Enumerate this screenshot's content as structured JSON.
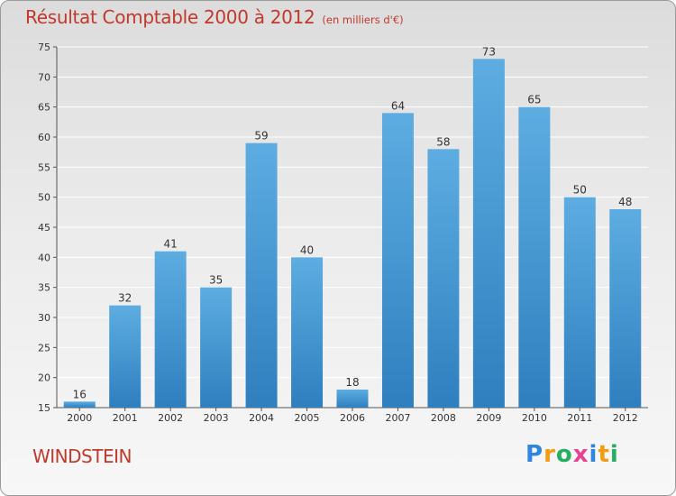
{
  "chart_data": {
    "type": "bar",
    "title": "Résultat Comptable 2000 à 2012",
    "subtitle": "(en milliers d'€)",
    "categories": [
      "2000",
      "2001",
      "2002",
      "2003",
      "2004",
      "2005",
      "2006",
      "2007",
      "2008",
      "2009",
      "2010",
      "2011",
      "2012"
    ],
    "values": [
      16,
      32,
      41,
      35,
      59,
      40,
      18,
      64,
      58,
      73,
      65,
      50,
      48
    ],
    "ylim": [
      15,
      75
    ],
    "yticks": [
      15,
      20,
      25,
      30,
      35,
      40,
      45,
      50,
      55,
      60,
      65,
      70,
      75
    ],
    "grid": true,
    "legend": "none",
    "bar_color_top": "#5dade2",
    "bar_color_bottom": "#2f7fbf"
  },
  "footer": {
    "commune": "WINDSTEIN",
    "logo_letters": [
      "P",
      "r",
      "o",
      "x",
      "i",
      "t",
      "i"
    ]
  },
  "colors": {
    "title": "#c0392b",
    "grid": "#ffffff"
  }
}
